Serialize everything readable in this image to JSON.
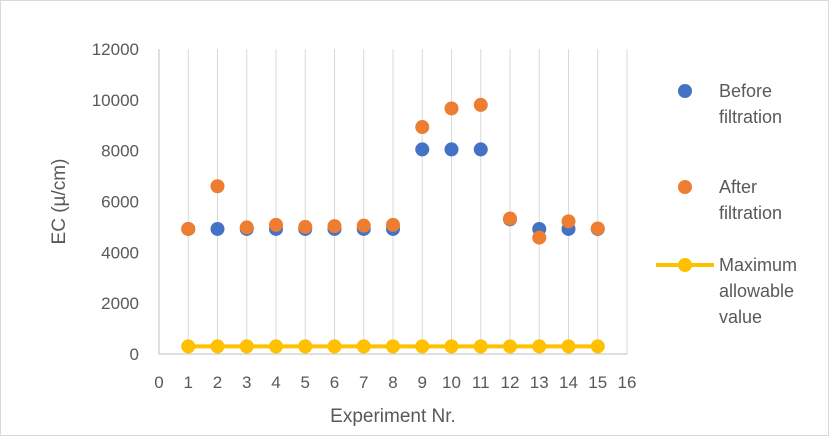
{
  "chart_data": {
    "type": "scatter",
    "xlabel": "Experiment Nr.",
    "ylabel": "EC (µ/cm)",
    "xlim": [
      0,
      16
    ],
    "ylim": [
      0,
      12000
    ],
    "xticks": [
      "0",
      "1",
      "2",
      "3",
      "4",
      "5",
      "6",
      "7",
      "8",
      "9",
      "10",
      "11",
      "12",
      "13",
      "14",
      "15",
      "16"
    ],
    "yticks": [
      "0",
      "2000",
      "4000",
      "6000",
      "8000",
      "10000",
      "12000"
    ],
    "grid": "vertical",
    "legend_position": "right",
    "series": [
      {
        "name": "Before filtration",
        "legend_lines": [
          "Before",
          "filtration"
        ],
        "color": "#4472C4",
        "marker": "circle",
        "x": [
          1,
          2,
          3,
          4,
          5,
          6,
          7,
          8,
          9,
          10,
          11,
          12,
          13,
          14,
          15
        ],
        "y": [
          4920,
          4920,
          4920,
          4920,
          4920,
          4920,
          4920,
          4920,
          8050,
          8050,
          8050,
          5300,
          4920,
          4920,
          4920
        ]
      },
      {
        "name": "After filtration",
        "legend_lines": [
          "After",
          "filtration"
        ],
        "color": "#ED7D31",
        "marker": "circle",
        "x": [
          1,
          2,
          3,
          4,
          5,
          6,
          7,
          8,
          9,
          10,
          11,
          12,
          13,
          14,
          15
        ],
        "y": [
          4920,
          6600,
          4980,
          5080,
          5000,
          5030,
          5050,
          5080,
          8930,
          9660,
          9800,
          5330,
          4580,
          5220,
          4940
        ]
      },
      {
        "name": "Maximum allowable value",
        "legend_lines": [
          "Maximum",
          "allowable",
          "value"
        ],
        "color": "#FFC000",
        "marker": "circle-line",
        "x": [
          1,
          2,
          3,
          4,
          5,
          6,
          7,
          8,
          9,
          10,
          11,
          12,
          13,
          14,
          15
        ],
        "y": [
          300,
          300,
          300,
          300,
          300,
          300,
          300,
          300,
          300,
          300,
          300,
          300,
          300,
          300,
          300
        ]
      }
    ]
  }
}
